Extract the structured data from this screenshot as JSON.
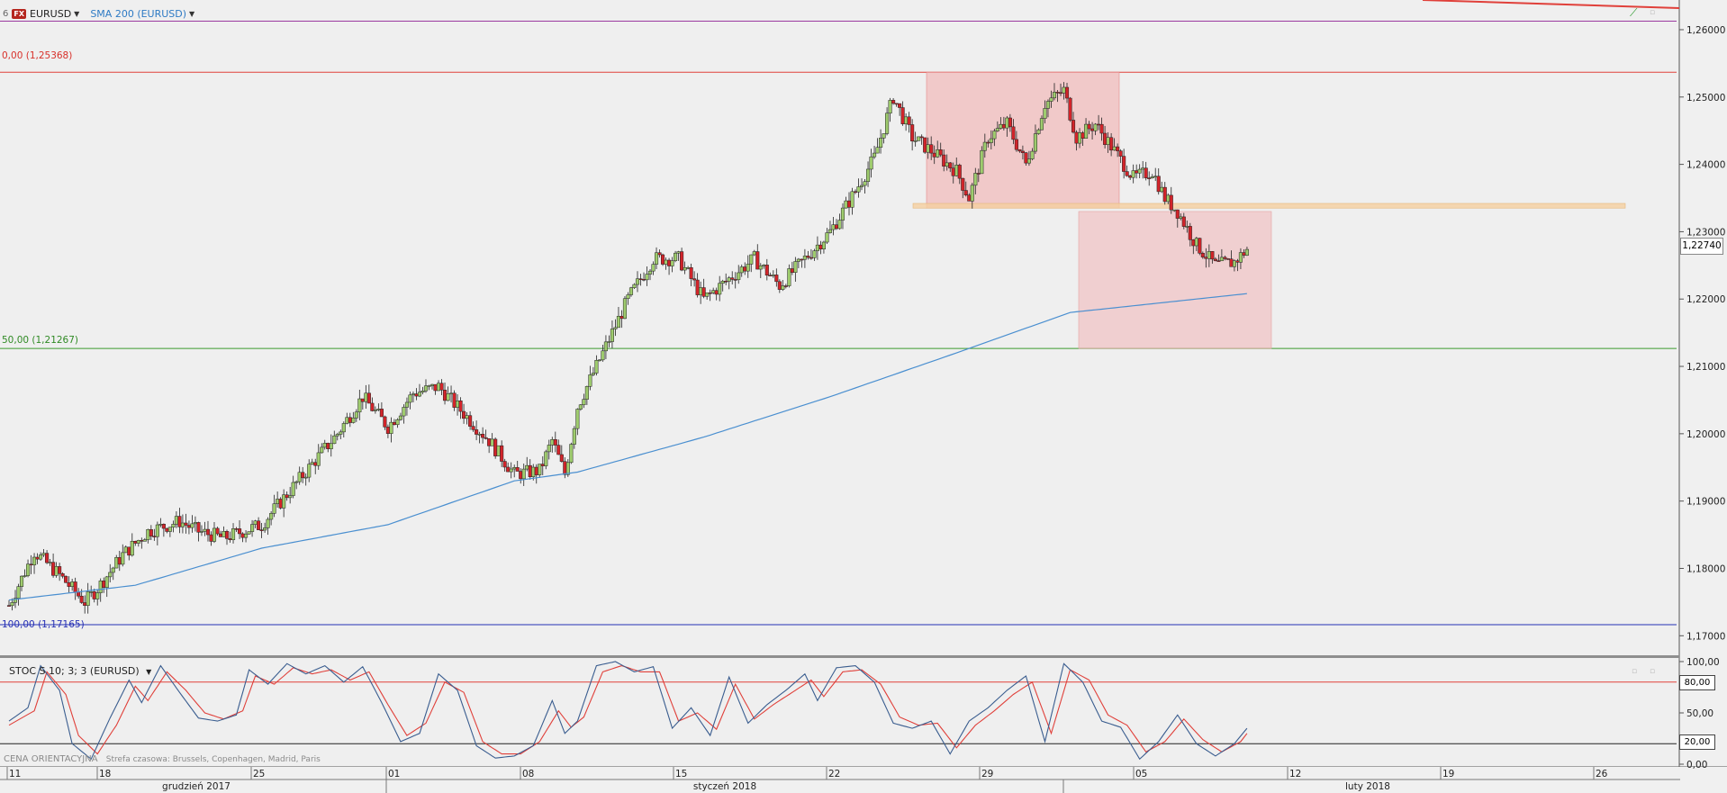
{
  "toolbar": {
    "prefix": "6",
    "symbol_badge": "FX",
    "symbol": "EURUSD",
    "indicator": "SMA 200 (EURUSD)"
  },
  "colors": {
    "bull": "#9fcc6e",
    "bear": "#d2242a",
    "sma": "#4a8fd0",
    "fib_top": "#e0403a",
    "fib_mid": "#3b9b2f",
    "fib_low": "#2630b5",
    "purple_line": "#9b3aa0",
    "rect_fill": "#f2a9aa",
    "band_fill": "#f5cfa0",
    "stoch_k": "#3a5d8f",
    "stoch_d": "#e0403a"
  },
  "fib_levels": [
    {
      "label": "0,00 (1,25368)",
      "value": 1.25368
    },
    {
      "label": "50,00 (1,21267)",
      "value": 1.21267
    },
    {
      "label": "100,00 (1,17165)",
      "value": 1.17165
    }
  ],
  "last_price_label": "1,22740",
  "stochastic": {
    "label": "STOC S 10; 3; 3 (EURUSD)",
    "upper_tag": "80,00",
    "lower_tag": "20,00",
    "axis": [
      "100,00",
      "50,00",
      "0,00"
    ]
  },
  "footer": {
    "note": "CENA ORIENTACYJNA",
    "timezone": "Strefa czasowa: Brussels, Copenhagen, Madrid, Paris"
  },
  "date_axis": {
    "days": [
      "11",
      "18",
      "25",
      "01",
      "08",
      "15",
      "22",
      "29",
      "05",
      "12",
      "19",
      "26"
    ],
    "months": [
      "grudzień 2017",
      "styczeń 2018",
      "luty 2018"
    ]
  },
  "chart_data": {
    "type": "candlestick",
    "title": "",
    "series_name": "EURUSD",
    "timeframe_note": "hourly-style candles, Dec 2017 – Feb 2018",
    "y_axis_ticks": [
      "1,26000",
      "1,25000",
      "1,24000",
      "1,23000",
      "1,22000",
      "1,21000",
      "1,20000",
      "1,19000",
      "1,18000",
      "1,17000"
    ],
    "ylim": [
      1.1675,
      1.2612
    ],
    "grid": false,
    "close_path": [
      [
        0,
        1.1745
      ],
      [
        4,
        1.1825
      ],
      [
        8,
        1.179
      ],
      [
        12,
        1.175
      ],
      [
        14,
        1.177
      ],
      [
        18,
        1.182
      ],
      [
        22,
        1.1855
      ],
      [
        27,
        1.187
      ],
      [
        30,
        1.1855
      ],
      [
        34,
        1.1845
      ],
      [
        40,
        1.1865
      ],
      [
        44,
        1.191
      ],
      [
        48,
        1.1955
      ],
      [
        52,
        1.2
      ],
      [
        56,
        1.2055
      ],
      [
        60,
        1.201
      ],
      [
        64,
        1.206
      ],
      [
        68,
        1.207
      ],
      [
        72,
        1.203
      ],
      [
        76,
        1.199
      ],
      [
        80,
        1.194
      ],
      [
        84,
        1.1945
      ],
      [
        86,
        1.199
      ],
      [
        88,
        1.194
      ],
      [
        90,
        1.204
      ],
      [
        94,
        1.212
      ],
      [
        98,
        1.22
      ],
      [
        102,
        1.226
      ],
      [
        106,
        1.226
      ],
      [
        110,
        1.22
      ],
      [
        114,
        1.223
      ],
      [
        118,
        1.226
      ],
      [
        122,
        1.222
      ],
      [
        126,
        1.226
      ],
      [
        130,
        1.23
      ],
      [
        134,
        1.236
      ],
      [
        137,
        1.241
      ],
      [
        140,
        1.25
      ],
      [
        143,
        1.244
      ],
      [
        146,
        1.242
      ],
      [
        150,
        1.239
      ],
      [
        152,
        1.235
      ],
      [
        155,
        1.244
      ],
      [
        158,
        1.246
      ],
      [
        161,
        1.24
      ],
      [
        164,
        1.249
      ],
      [
        167,
        1.251
      ],
      [
        169,
        1.244
      ],
      [
        172,
        1.246
      ],
      [
        175,
        1.242
      ],
      [
        178,
        1.238
      ],
      [
        181,
        1.239
      ],
      [
        183,
        1.235
      ],
      [
        185,
        1.233
      ],
      [
        188,
        1.228
      ],
      [
        191,
        1.225
      ],
      [
        194,
        1.2255
      ],
      [
        196,
        1.2274
      ]
    ],
    "sma_200": [
      [
        0,
        1.1753
      ],
      [
        20,
        1.1775
      ],
      [
        40,
        1.183
      ],
      [
        60,
        1.1865
      ],
      [
        80,
        1.193
      ],
      [
        90,
        1.1943
      ],
      [
        110,
        1.1995
      ],
      [
        130,
        1.2055
      ],
      [
        150,
        1.212
      ],
      [
        168,
        1.218
      ],
      [
        196,
        1.2208
      ]
    ],
    "stochastic_k": [
      [
        0,
        42
      ],
      [
        3,
        55
      ],
      [
        5,
        96
      ],
      [
        8,
        72
      ],
      [
        10,
        20
      ],
      [
        13,
        5
      ],
      [
        16,
        45
      ],
      [
        19,
        82
      ],
      [
        21,
        60
      ],
      [
        24,
        96
      ],
      [
        27,
        70
      ],
      [
        30,
        45
      ],
      [
        33,
        42
      ],
      [
        36,
        48
      ],
      [
        38,
        92
      ],
      [
        41,
        78
      ],
      [
        44,
        98
      ],
      [
        47,
        88
      ],
      [
        50,
        96
      ],
      [
        53,
        80
      ],
      [
        56,
        95
      ],
      [
        59,
        60
      ],
      [
        62,
        22
      ],
      [
        65,
        30
      ],
      [
        68,
        88
      ],
      [
        71,
        72
      ],
      [
        74,
        18
      ],
      [
        77,
        6
      ],
      [
        80,
        8
      ],
      [
        83,
        18
      ],
      [
        86,
        62
      ],
      [
        88,
        30
      ],
      [
        90,
        42
      ],
      [
        93,
        96
      ],
      [
        96,
        100
      ],
      [
        99,
        90
      ],
      [
        102,
        95
      ],
      [
        105,
        35
      ],
      [
        108,
        55
      ],
      [
        111,
        28
      ],
      [
        114,
        85
      ],
      [
        117,
        40
      ],
      [
        120,
        58
      ],
      [
        123,
        72
      ],
      [
        126,
        88
      ],
      [
        128,
        62
      ],
      [
        131,
        94
      ],
      [
        134,
        96
      ],
      [
        137,
        80
      ],
      [
        140,
        40
      ],
      [
        143,
        35
      ],
      [
        146,
        42
      ],
      [
        149,
        10
      ],
      [
        152,
        42
      ],
      [
        155,
        55
      ],
      [
        158,
        72
      ],
      [
        161,
        86
      ],
      [
        164,
        22
      ],
      [
        167,
        98
      ],
      [
        170,
        80
      ],
      [
        173,
        42
      ],
      [
        176,
        36
      ],
      [
        179,
        5
      ],
      [
        182,
        22
      ],
      [
        185,
        48
      ],
      [
        188,
        20
      ],
      [
        191,
        8
      ],
      [
        194,
        20
      ],
      [
        196,
        35
      ]
    ],
    "stochastic_d": [
      [
        0,
        38
      ],
      [
        4,
        52
      ],
      [
        6,
        90
      ],
      [
        9,
        68
      ],
      [
        11,
        28
      ],
      [
        14,
        10
      ],
      [
        17,
        38
      ],
      [
        20,
        76
      ],
      [
        22,
        62
      ],
      [
        25,
        90
      ],
      [
        28,
        72
      ],
      [
        31,
        50
      ],
      [
        34,
        44
      ],
      [
        37,
        52
      ],
      [
        39,
        86
      ],
      [
        42,
        78
      ],
      [
        45,
        94
      ],
      [
        48,
        88
      ],
      [
        51,
        92
      ],
      [
        54,
        82
      ],
      [
        57,
        90
      ],
      [
        60,
        58
      ],
      [
        63,
        28
      ],
      [
        66,
        40
      ],
      [
        69,
        80
      ],
      [
        72,
        70
      ],
      [
        75,
        22
      ],
      [
        78,
        10
      ],
      [
        81,
        10
      ],
      [
        84,
        22
      ],
      [
        87,
        52
      ],
      [
        89,
        36
      ],
      [
        91,
        46
      ],
      [
        94,
        90
      ],
      [
        97,
        96
      ],
      [
        100,
        90
      ],
      [
        103,
        90
      ],
      [
        106,
        42
      ],
      [
        109,
        50
      ],
      [
        112,
        34
      ],
      [
        115,
        78
      ],
      [
        118,
        44
      ],
      [
        121,
        58
      ],
      [
        124,
        70
      ],
      [
        127,
        82
      ],
      [
        129,
        66
      ],
      [
        132,
        90
      ],
      [
        135,
        92
      ],
      [
        138,
        78
      ],
      [
        141,
        46
      ],
      [
        144,
        38
      ],
      [
        147,
        40
      ],
      [
        150,
        16
      ],
      [
        153,
        38
      ],
      [
        156,
        52
      ],
      [
        159,
        68
      ],
      [
        162,
        80
      ],
      [
        165,
        30
      ],
      [
        168,
        92
      ],
      [
        171,
        82
      ],
      [
        174,
        48
      ],
      [
        177,
        38
      ],
      [
        180,
        12
      ],
      [
        183,
        22
      ],
      [
        186,
        44
      ],
      [
        189,
        24
      ],
      [
        192,
        12
      ],
      [
        195,
        22
      ],
      [
        196,
        30
      ]
    ],
    "stoch_levels": [
      80,
      20
    ]
  }
}
